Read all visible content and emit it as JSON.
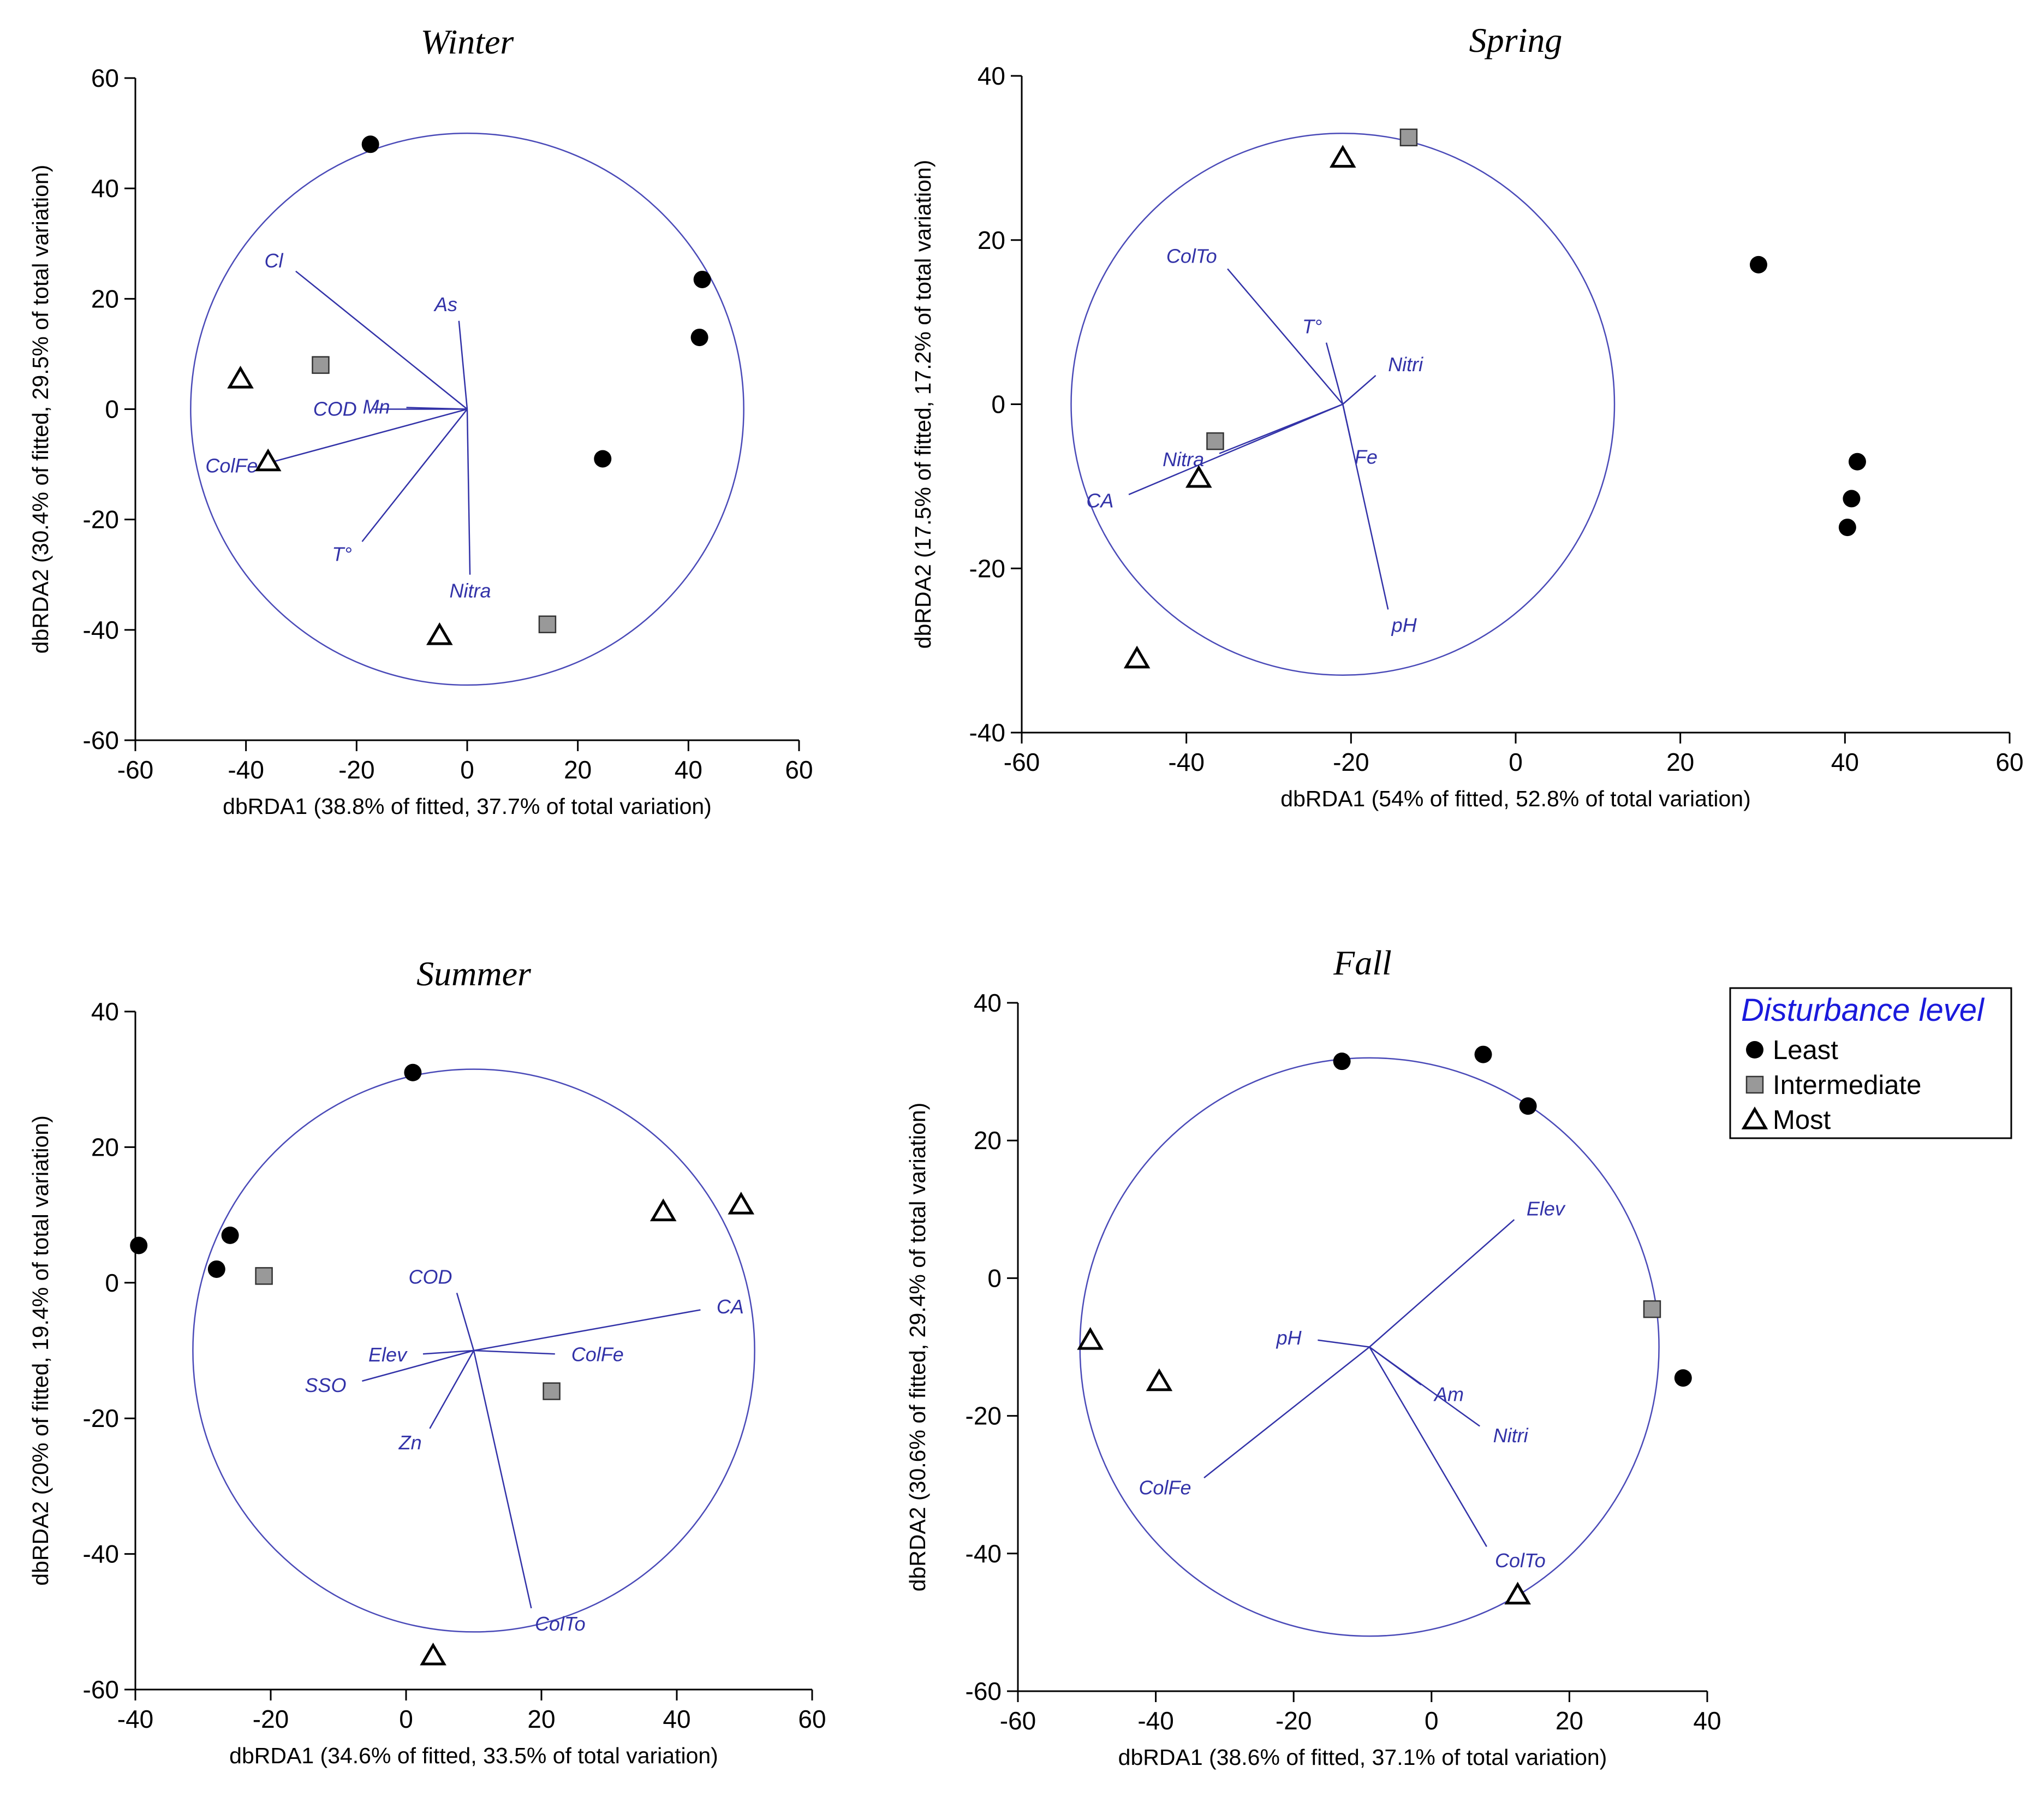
{
  "colors": {
    "vector": "#3232a8",
    "circle": "#4a4ab8",
    "least": "#000000",
    "intermediate": "#999999",
    "most": "#ffffff",
    "legend_title": "#1a1adc"
  },
  "legend": {
    "title": "Disturbance level",
    "entries": [
      {
        "name": "Least",
        "symbol": "circle"
      },
      {
        "name": "Intermediate",
        "symbol": "square"
      },
      {
        "name": "Most",
        "symbol": "triangle"
      }
    ]
  },
  "chart_data": [
    {
      "type": "scatter",
      "title": "Winter",
      "xlabel": "dbRDA1 (38.8% of fitted, 37.7% of total variation)",
      "ylabel": "dbRDA2 (30.4% of fitted, 29.5% of total variation)",
      "xlim": [
        -60,
        60
      ],
      "ylim": [
        -60,
        60
      ],
      "xticks": [
        -60,
        -40,
        -20,
        0,
        20,
        40,
        60
      ],
      "yticks": [
        -60,
        -40,
        -20,
        0,
        20,
        40,
        60
      ],
      "correlation_circle": {
        "cx": 0,
        "cy": 0,
        "r": 50
      },
      "vector_origin": [
        0,
        0
      ],
      "vectors": [
        {
          "label": "Cl",
          "x": -31,
          "y": 25
        },
        {
          "label": "As",
          "x": -1.5,
          "y": 16
        },
        {
          "label": "Mn",
          "x": -11,
          "y": 0.3
        },
        {
          "label": "COD",
          "x": -17,
          "y": 0
        },
        {
          "label": "ColFe",
          "x": -35,
          "y": -9.5
        },
        {
          "label": "T°",
          "x": -19,
          "y": -24
        },
        {
          "label": "Nitra",
          "x": 0.5,
          "y": -30
        }
      ],
      "series": [
        {
          "name": "Least",
          "points": [
            [
              -17.5,
              48
            ],
            [
              42.5,
              23.5
            ],
            [
              42,
              13
            ],
            [
              24.5,
              -9
            ]
          ]
        },
        {
          "name": "Intermediate",
          "points": [
            [
              -26.5,
              8
            ],
            [
              14.5,
              -39
            ]
          ]
        },
        {
          "name": "Most",
          "points": [
            [
              -41,
              5.5
            ],
            [
              -36,
              -9.5
            ],
            [
              -5,
              -41
            ]
          ]
        }
      ]
    },
    {
      "type": "scatter",
      "title": "Spring",
      "xlabel": "dbRDA1 (54% of fitted, 52.8% of total variation)",
      "ylabel": "dbRDA2 (17.5% of fitted, 17.2% of total variation)",
      "xlim": [
        -60,
        60
      ],
      "ylim": [
        -40,
        40
      ],
      "xticks": [
        -60,
        -40,
        -20,
        0,
        20,
        40,
        60
      ],
      "yticks": [
        -40,
        -20,
        0,
        20,
        40
      ],
      "correlation_circle": {
        "cx": -21,
        "cy": 0,
        "r": 33
      },
      "vector_origin": [
        -21,
        0
      ],
      "vectors": [
        {
          "label": "ColTo",
          "x": -35,
          "y": 16.5
        },
        {
          "label": "T°",
          "x": -23,
          "y": 7.5
        },
        {
          "label": "Nitri",
          "x": -17,
          "y": 3.5
        },
        {
          "label": "Fe",
          "x": -20,
          "y": -4.5
        },
        {
          "label": "Nitra",
          "x": -36,
          "y": -6
        },
        {
          "label": "CA",
          "x": -47,
          "y": -11
        },
        {
          "label": "pH",
          "x": -15.5,
          "y": -25
        }
      ],
      "series": [
        {
          "name": "Least",
          "points": [
            [
              29.5,
              17
            ],
            [
              41.5,
              -7
            ],
            [
              40.8,
              -11.5
            ],
            [
              40.3,
              -15
            ]
          ]
        },
        {
          "name": "Intermediate",
          "points": [
            [
              -13,
              32.5
            ],
            [
              -36.5,
              -4.5
            ]
          ]
        },
        {
          "name": "Most",
          "points": [
            [
              -21,
              30
            ],
            [
              -38.5,
              -9
            ],
            [
              -46,
              -31
            ]
          ]
        }
      ]
    },
    {
      "type": "scatter",
      "title": "Summer",
      "xlabel": "dbRDA1 (34.6% of fitted, 33.5% of total variation)",
      "ylabel": "dbRDA2 (20% of fitted, 19.4% of total variation)",
      "xlim": [
        -40,
        60
      ],
      "ylim": [
        -60,
        40
      ],
      "xticks": [
        -40,
        -20,
        0,
        20,
        40,
        60
      ],
      "yticks": [
        -60,
        -40,
        -20,
        0,
        20,
        40
      ],
      "correlation_circle": {
        "cx": 10,
        "cy": -10,
        "r": 41.5
      },
      "vector_origin": [
        10,
        -10
      ],
      "vectors": [
        {
          "label": "COD",
          "x": 7.5,
          "y": -1.5
        },
        {
          "label": "CA",
          "x": 43.5,
          "y": -4
        },
        {
          "label": "Elev",
          "x": 2.5,
          "y": -10.5
        },
        {
          "label": "SSO",
          "x": -6.5,
          "y": -14.5
        },
        {
          "label": "ColFe",
          "x": 22,
          "y": -10.5
        },
        {
          "label": "Zn",
          "x": 3.5,
          "y": -21.5
        },
        {
          "label": "ColTo",
          "x": 18.5,
          "y": -48
        }
      ],
      "series": [
        {
          "name": "Least",
          "points": [
            [
              1,
              31
            ],
            [
              -39.5,
              5.5
            ],
            [
              -26,
              7
            ],
            [
              -28,
              2
            ]
          ]
        },
        {
          "name": "Intermediate",
          "points": [
            [
              -21,
              1
            ],
            [
              21.5,
              -16
            ]
          ]
        },
        {
          "name": "Most",
          "points": [
            [
              38,
              10.5
            ],
            [
              49.5,
              11.5
            ],
            [
              4,
              -55
            ]
          ]
        }
      ]
    },
    {
      "type": "scatter",
      "title": "Fall",
      "xlabel": "dbRDA1 (38.6% of fitted, 37.1% of total variation)",
      "ylabel": "dbRDA2 (30.6% of fitted, 29.4% of total variation)",
      "xlim": [
        -60,
        40
      ],
      "ylim": [
        -60,
        40
      ],
      "xticks": [
        -60,
        -40,
        -20,
        0,
        20,
        40
      ],
      "yticks": [
        -60,
        -40,
        -20,
        0,
        20,
        40
      ],
      "correlation_circle": {
        "cx": -9,
        "cy": -10,
        "r": 42
      },
      "vector_origin": [
        -9,
        -10
      ],
      "vectors": [
        {
          "label": "Elev",
          "x": 12,
          "y": 8.5
        },
        {
          "label": "pH",
          "x": -16.5,
          "y": -9
        },
        {
          "label": "Am",
          "x": -1.5,
          "y": -15.5
        },
        {
          "label": "Nitri",
          "x": 7,
          "y": -21.5
        },
        {
          "label": "ColFe",
          "x": -33,
          "y": -29
        },
        {
          "label": "ColTo",
          "x": 8,
          "y": -39
        }
      ],
      "series": [
        {
          "name": "Least",
          "points": [
            [
              -13,
              31.5
            ],
            [
              7.5,
              32.5
            ],
            [
              14,
              25
            ],
            [
              36.5,
              -14.5
            ]
          ]
        },
        {
          "name": "Intermediate",
          "points": [
            [
              32,
              -4.5
            ]
          ]
        },
        {
          "name": "Most",
          "points": [
            [
              -49.5,
              -9
            ],
            [
              -39.5,
              -15
            ],
            [
              12.5,
              -46
            ]
          ]
        }
      ]
    }
  ]
}
